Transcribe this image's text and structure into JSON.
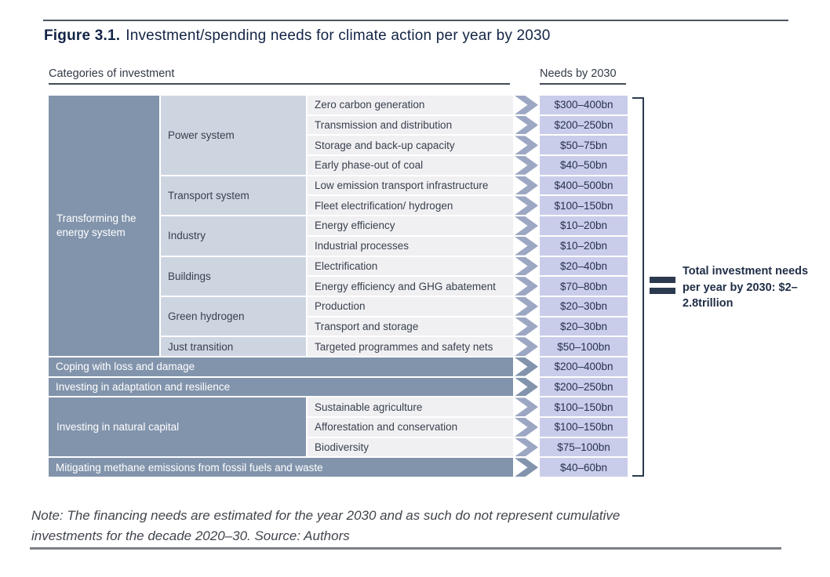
{
  "figure": {
    "label": "Figure 3.1.",
    "title": "Investment/spending needs for climate action per year by 2030"
  },
  "headers": {
    "categories": "Categories of investment",
    "needs": "Needs by 2030"
  },
  "energy_system": {
    "category": "Transforming the energy system",
    "groups": [
      {
        "name": "Power system",
        "items": [
          {
            "label": "Zero carbon generation",
            "value": "$300–400bn"
          },
          {
            "label": "Transmission and distribution",
            "value": "$200–250bn"
          },
          {
            "label": "Storage and back-up capacity",
            "value": "$50–75bn"
          },
          {
            "label": "Early phase-out of coal",
            "value": "$40–50bn"
          }
        ]
      },
      {
        "name": "Transport system",
        "items": [
          {
            "label": "Low emission transport infrastructure",
            "value": "$400–500bn"
          },
          {
            "label": "Fleet electrification/ hydrogen",
            "value": "$100–150bn"
          }
        ]
      },
      {
        "name": "Industry",
        "items": [
          {
            "label": "Energy efficiency",
            "value": "$10–20bn"
          },
          {
            "label": "Industrial processes",
            "value": "$10–20bn"
          }
        ]
      },
      {
        "name": "Buildings",
        "items": [
          {
            "label": "Electrification",
            "value": "$20–40bn"
          },
          {
            "label": "Energy efficiency and GHG abatement",
            "value": "$70–80bn"
          }
        ]
      },
      {
        "name": "Green hydrogen",
        "items": [
          {
            "label": "Production",
            "value": "$20–30bn"
          },
          {
            "label": "Transport and storage",
            "value": "$20–30bn"
          }
        ]
      },
      {
        "name": "Just transition",
        "items": [
          {
            "label": "Targeted programmes and safety nets",
            "value": "$50–100bn"
          }
        ]
      }
    ]
  },
  "band_rows_mid": [
    {
      "label": "Coping with loss and damage",
      "value": "$200–400bn"
    },
    {
      "label": "Investing in adaptation and resilience",
      "value": "$200–250bn"
    }
  ],
  "natural_capital": {
    "category": "Investing in natural capital",
    "items": [
      {
        "label": "Sustainable agriculture",
        "value": "$100–150bn"
      },
      {
        "label": "Afforestation and conservation",
        "value": "$100–150bn"
      },
      {
        "label": "Biodiversity",
        "value": "$75–100bn"
      }
    ]
  },
  "band_row_bottom": {
    "label": "Mitigating methane emissions from fossil fuels and waste",
    "value": "$40–60bn"
  },
  "total": {
    "text": "Total investment needs per year by 2030: $2–2.8trillion"
  },
  "note": {
    "line1": "Note: The financing needs are estimated for the year 2030 and as such do not represent cumulative",
    "line2": "investments for the decade 2020–30. Source: Authors"
  },
  "colors": {
    "band": "#8294ac",
    "group_cell": "#cdd5e1",
    "item_row": "#f0f0f2",
    "value_badge": "#c9cde9",
    "arrow_light": "#9ca7c3",
    "navy_text": "#132445",
    "bracket": "#2c3a50"
  }
}
